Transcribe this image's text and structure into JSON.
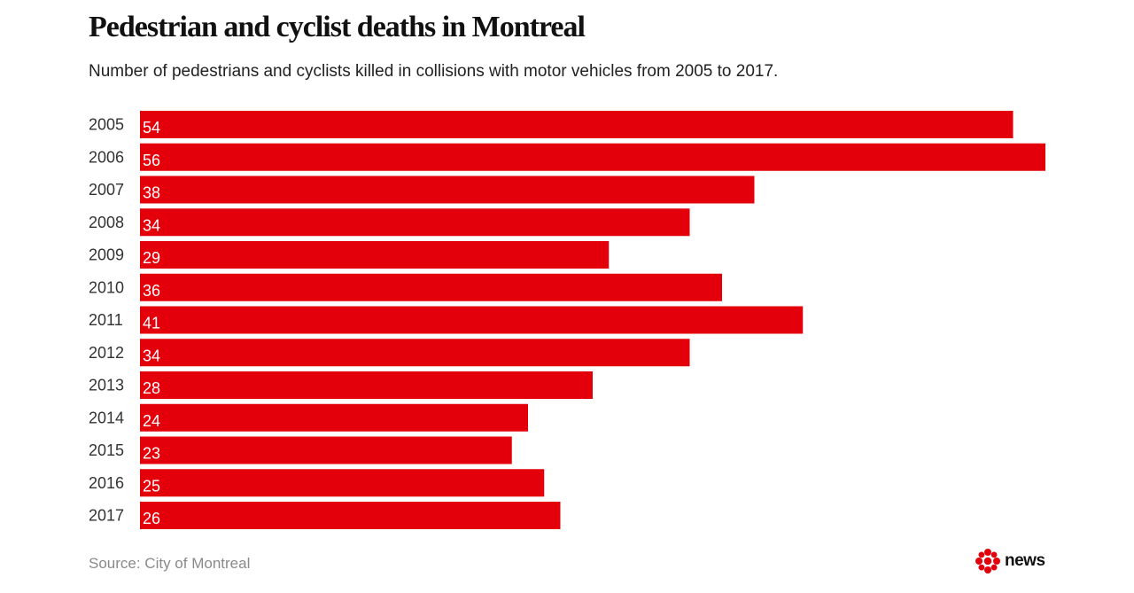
{
  "header": {
    "title": "Pedestrian and cyclist deaths in Montreal",
    "subtitle": "Number of pedestrians and cyclists killed in collisions with motor vehicles from 2005 to 2017."
  },
  "footer": {
    "source": "Source: City of Montreal",
    "logo_text": "news",
    "logo_icon": "cbc-gem-icon"
  },
  "colors": {
    "bar": "#e3000b",
    "logo": "#e3000b"
  },
  "chart_data": {
    "type": "bar",
    "orientation": "horizontal",
    "title": "Pedestrian and cyclist deaths in Montreal",
    "subtitle": "Number of pedestrians and cyclists killed in collisions with motor vehicles from 2005 to 2017.",
    "categories": [
      "2005",
      "2006",
      "2007",
      "2008",
      "2009",
      "2010",
      "2011",
      "2012",
      "2013",
      "2014",
      "2015",
      "2016",
      "2017"
    ],
    "values": [
      54,
      56,
      38,
      34,
      29,
      36,
      41,
      34,
      28,
      24,
      23,
      25,
      26
    ],
    "xlabel": "",
    "ylabel": "",
    "xlim": [
      0,
      56
    ],
    "grid": false,
    "legend": "none",
    "data_labels": "inside-left"
  }
}
